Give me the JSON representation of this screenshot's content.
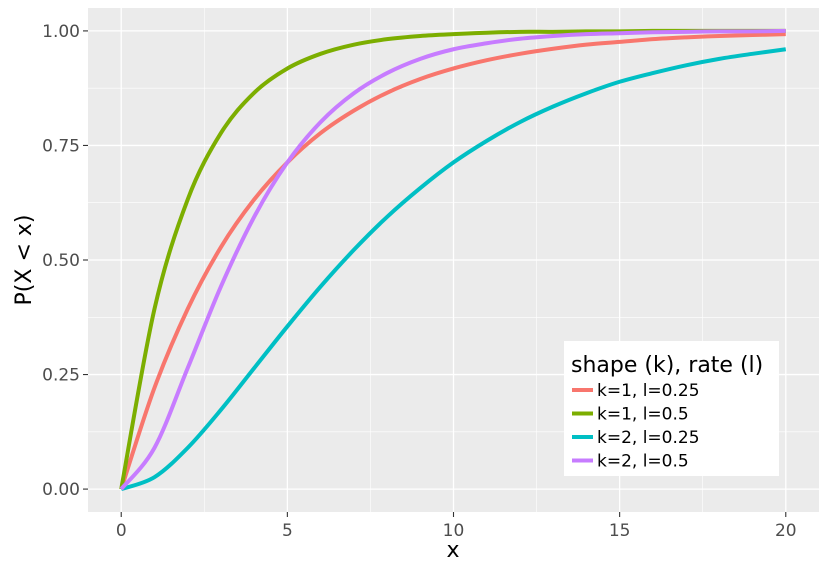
{
  "chart_data": {
    "type": "line",
    "title": "",
    "xlabel": "x",
    "ylabel": "P(X < x)",
    "xlim": [
      -1,
      21
    ],
    "ylim": [
      -0.05,
      1.05
    ],
    "x_ticks": [
      0,
      5,
      10,
      15,
      20
    ],
    "x_tick_labels": [
      "0",
      "5",
      "10",
      "15",
      "20"
    ],
    "y_ticks": [
      0,
      0.25,
      0.5,
      0.75,
      1.0
    ],
    "y_tick_labels": [
      "0.00",
      "0.25",
      "0.50",
      "0.75",
      "1.00"
    ],
    "grid": true,
    "legend": {
      "title": "shape (k), rate (l)",
      "position": "bottom-right"
    },
    "x": [
      0,
      1,
      2,
      3,
      4,
      5,
      6,
      7,
      8,
      9,
      10,
      11,
      12,
      13,
      14,
      15,
      16,
      17,
      18,
      19,
      20
    ],
    "series": [
      {
        "name": "k=1, l=0.25",
        "color": "#F8766D",
        "values": [
          0,
          0.221,
          0.393,
          0.528,
          0.632,
          0.713,
          0.777,
          0.826,
          0.865,
          0.895,
          0.918,
          0.936,
          0.95,
          0.961,
          0.97,
          0.976,
          0.982,
          0.986,
          0.989,
          0.991,
          0.993
        ]
      },
      {
        "name": "k=1, l=0.5",
        "color": "#7CAE00",
        "values": [
          0,
          0.393,
          0.632,
          0.777,
          0.865,
          0.918,
          0.95,
          0.97,
          0.982,
          0.989,
          0.993,
          0.996,
          0.998,
          0.998,
          0.999,
          0.999,
          1.0,
          1.0,
          1.0,
          1.0,
          1.0
        ]
      },
      {
        "name": "k=2, l=0.25",
        "color": "#00BFC4",
        "values": [
          0,
          0.026,
          0.09,
          0.173,
          0.264,
          0.355,
          0.442,
          0.522,
          0.594,
          0.657,
          0.713,
          0.76,
          0.801,
          0.835,
          0.864,
          0.889,
          0.908,
          0.925,
          0.939,
          0.95,
          0.96
        ]
      },
      {
        "name": "k=2, l=0.5",
        "color": "#C77CFF",
        "values": [
          0,
          0.09,
          0.264,
          0.442,
          0.594,
          0.713,
          0.801,
          0.864,
          0.908,
          0.939,
          0.96,
          0.973,
          0.983,
          0.989,
          0.993,
          0.995,
          0.997,
          0.998,
          0.999,
          0.999,
          1.0
        ]
      }
    ]
  }
}
